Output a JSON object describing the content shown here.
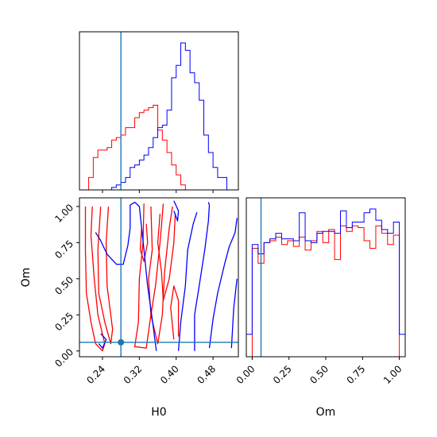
{
  "chart_data": {
    "type": "corner",
    "parameters": [
      "H0",
      "Om"
    ],
    "truth": {
      "H0": 0.28,
      "Om": 0.06
    },
    "colors": {
      "red": "#ff0000",
      "blue": "#0000ff",
      "truth": "#1f77b4"
    },
    "panels": [
      {
        "id": "H0-hist",
        "type": "histogram",
        "xlim": [
          0.19,
          0.535
        ],
        "bin_edges": [
          0.2,
          0.21,
          0.22,
          0.23,
          0.24,
          0.25,
          0.26,
          0.27,
          0.28,
          0.29,
          0.3,
          0.31,
          0.32,
          0.33,
          0.34,
          0.35,
          0.36,
          0.37,
          0.38,
          0.39,
          0.4,
          0.41,
          0.42,
          0.43,
          0.44,
          0.45,
          0.46,
          0.47,
          0.48,
          0.49,
          0.5,
          0.51,
          0.52
        ],
        "series": [
          {
            "color": "red",
            "counts": [
              0,
              5,
              13,
              16,
              16,
              17,
              20,
              21,
              22,
              25,
              25,
              29,
              31,
              32,
              33,
              34,
              24,
              20,
              15,
              10,
              6,
              2,
              0,
              0,
              0,
              0,
              0,
              0,
              0,
              0,
              0,
              0
            ]
          },
          {
            "color": "blue",
            "counts": [
              0,
              0,
              0,
              0,
              0,
              0,
              1,
              2,
              3,
              5,
              9,
              10,
              12,
              14,
              17,
              21,
              25,
              26,
              32,
              45,
              50,
              59,
              56,
              47,
              43,
              36,
              22,
              15,
              9,
              5,
              5,
              0
            ]
          }
        ],
        "xticks": [
          0.24,
          0.32,
          0.4,
          0.48
        ]
      },
      {
        "id": "Om-hist",
        "type": "histogram",
        "xlim": [
          -0.04,
          1.04
        ],
        "bin_edges": [
          -0.04,
          0.0,
          0.04,
          0.08,
          0.12,
          0.16,
          0.2,
          0.24,
          0.28,
          0.32,
          0.36,
          0.4,
          0.44,
          0.48,
          0.52,
          0.56,
          0.6,
          0.64,
          0.68,
          0.72,
          0.76,
          0.8,
          0.84,
          0.88,
          0.92,
          0.96,
          1.0,
          1.04
        ],
        "series": [
          {
            "color": "red",
            "counts": [
              0,
              58,
              50,
              61,
              62,
              64,
              60,
              62,
              59,
              64,
              57,
              62,
              67,
              61,
              68,
              52,
              70,
              67,
              70,
              69,
              62,
              58,
              70,
              66,
              60,
              65,
              0
            ]
          },
          {
            "color": "blue",
            "counts": [
              12,
              60,
              55,
              61,
              63,
              66,
              63,
              63,
              62,
              77,
              62,
              61,
              66,
              67,
              67,
              66,
              78,
              69,
              72,
              72,
              77,
              79,
              73,
              68,
              66,
              72,
              12
            ]
          }
        ],
        "xticks": [
          0.0,
          0.25,
          0.5,
          0.75,
          1.0
        ],
        "xticklabels": [
          "0.00",
          "0.25",
          "0.50",
          "0.75",
          "1.00"
        ],
        "xlabel": "Om"
      },
      {
        "id": "H0-Om-contour",
        "type": "contour",
        "xlim": [
          0.19,
          0.535
        ],
        "ylim": [
          -0.04,
          1.06
        ],
        "xticks": [
          0.24,
          0.32,
          0.4,
          0.48
        ],
        "xticklabels": [
          "0.24",
          "0.32",
          "0.40",
          "0.48"
        ],
        "yticks": [
          0.0,
          0.25,
          0.5,
          0.75,
          1.0
        ],
        "yticklabels": [
          "0.00",
          "0.25",
          "0.50",
          "0.75",
          "1.00"
        ],
        "xlabel": "H0",
        "ylabel": "Om",
        "contours": [
          {
            "color": "red",
            "points": [
              [
                0.203,
                1.0
              ],
              [
                0.203,
                0.7
              ],
              [
                0.205,
                0.4
              ],
              [
                0.215,
                0.2
              ],
              [
                0.225,
                0.05
              ],
              [
                0.24,
                0.0
              ],
              [
                0.245,
                0.05
              ],
              [
                0.23,
                0.25
              ],
              [
                0.222,
                0.5
              ],
              [
                0.215,
                0.8
              ],
              [
                0.218,
                1.0
              ]
            ]
          },
          {
            "color": "red",
            "points": [
              [
                0.236,
                1.0
              ],
              [
                0.23,
                0.7
              ],
              [
                0.232,
                0.4
              ],
              [
                0.245,
                0.2
              ],
              [
                0.258,
                0.05
              ],
              [
                0.262,
                0.15
              ],
              [
                0.25,
                0.45
              ],
              [
                0.248,
                0.75
              ],
              [
                0.253,
                1.0
              ]
            ]
          },
          {
            "color": "red",
            "points": [
              [
                0.33,
                1.02
              ],
              [
                0.328,
                0.75
              ],
              [
                0.32,
                0.5
              ],
              [
                0.318,
                0.2
              ],
              [
                0.31,
                0.03
              ],
              [
                0.335,
                0.02
              ],
              [
                0.345,
                0.25
              ],
              [
                0.355,
                0.45
              ],
              [
                0.365,
                0.75
              ],
              [
                0.372,
                1.02
              ]
            ]
          },
          {
            "color": "red",
            "points": [
              [
                0.345,
                1.0
              ],
              [
                0.348,
                0.7
              ],
              [
                0.34,
                0.5
              ],
              [
                0.345,
                0.25
              ],
              [
                0.36,
                0.05
              ],
              [
                0.37,
                0.25
              ],
              [
                0.375,
                0.55
              ],
              [
                0.385,
                0.85
              ],
              [
                0.392,
                1.0
              ]
            ]
          },
          {
            "color": "red",
            "points": [
              [
                0.365,
                0.95
              ],
              [
                0.36,
                0.75
              ],
              [
                0.368,
                0.55
              ],
              [
                0.372,
                0.35
              ],
              [
                0.385,
                0.5
              ],
              [
                0.395,
                0.75
              ],
              [
                0.398,
                0.95
              ]
            ]
          },
          {
            "color": "red",
            "points": [
              [
                0.325,
                0.85
              ],
              [
                0.322,
                0.7
              ],
              [
                0.33,
                0.62
              ],
              [
                0.338,
                0.75
              ],
              [
                0.335,
                0.88
              ]
            ]
          },
          {
            "color": "red",
            "points": [
              [
                0.395,
                0.08
              ],
              [
                0.388,
                0.3
              ],
              [
                0.395,
                0.45
              ],
              [
                0.405,
                0.35
              ],
              [
                0.405,
                0.1
              ]
            ]
          },
          {
            "color": "blue",
            "points": [
              [
                0.225,
                0.82
              ],
              [
                0.235,
                0.77
              ],
              [
                0.25,
                0.67
              ],
              [
                0.27,
                0.6
              ],
              [
                0.285,
                0.6
              ],
              [
                0.295,
                0.73
              ],
              [
                0.3,
                0.85
              ],
              [
                0.3,
                1.01
              ],
              [
                0.31,
                1.03
              ],
              [
                0.32,
                1.0
              ],
              [
                0.33,
                0.7
              ],
              [
                0.338,
                0.45
              ],
              [
                0.348,
                0.22
              ],
              [
                0.357,
                0.0
              ]
            ]
          },
          {
            "color": "blue",
            "points": [
              [
                0.232,
                0.05
              ],
              [
                0.24,
                0.02
              ],
              [
                0.248,
                0.08
              ],
              [
                0.236,
                0.12
              ]
            ]
          },
          {
            "color": "blue",
            "points": [
              [
                0.405,
                0.0
              ],
              [
                0.41,
                0.2
              ],
              [
                0.42,
                0.45
              ],
              [
                0.425,
                0.7
              ],
              [
                0.437,
                0.88
              ],
              [
                0.445,
                0.96
              ]
            ]
          },
          {
            "color": "blue",
            "points": [
              [
                0.44,
                0.0
              ],
              [
                0.44,
                0.25
              ],
              [
                0.45,
                0.45
              ],
              [
                0.462,
                0.7
              ],
              [
                0.47,
                0.9
              ],
              [
                0.472,
                1.01
              ],
              [
                0.47,
                1.03
              ]
            ]
          },
          {
            "color": "blue",
            "points": [
              [
                0.472,
                0.02
              ],
              [
                0.48,
                0.22
              ],
              [
                0.49,
                0.4
              ],
              [
                0.505,
                0.6
              ],
              [
                0.515,
                0.72
              ],
              [
                0.528,
                0.82
              ],
              [
                0.532,
                0.92
              ]
            ]
          },
          {
            "color": "blue",
            "points": [
              [
                0.395,
                1.04
              ],
              [
                0.405,
                0.97
              ],
              [
                0.403,
                0.9
              ],
              [
                0.395,
                0.97
              ]
            ]
          },
          {
            "color": "blue",
            "points": [
              [
                0.52,
                0.02
              ],
              [
                0.525,
                0.3
              ],
              [
                0.532,
                0.5
              ]
            ]
          }
        ]
      }
    ]
  }
}
